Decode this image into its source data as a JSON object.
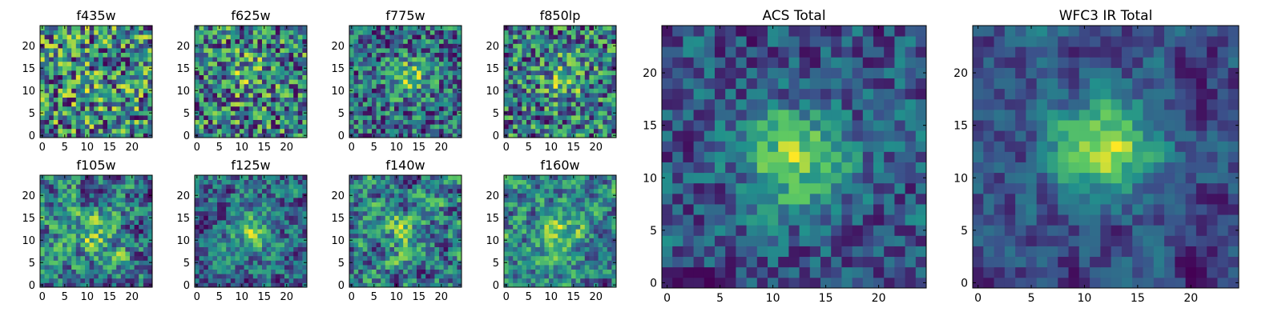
{
  "figure": {
    "colormap": "viridis",
    "colormap_stops": [
      "#440154",
      "#3b528b",
      "#21918c",
      "#5ec962",
      "#fde725"
    ]
  },
  "chart_data": [
    {
      "type": "heatmap",
      "title": "f435w",
      "grid_size": 25,
      "xlim": [
        -0.5,
        24.5
      ],
      "ylim": [
        -0.5,
        24.5
      ],
      "xticks": [
        0,
        5,
        10,
        15,
        20
      ],
      "yticks": [
        0,
        5,
        10,
        15,
        20
      ],
      "source_peak": {
        "x": 12,
        "y": 10
      },
      "source_strength": 0.05,
      "noise_level": 0.32,
      "smoothness": 0.0,
      "seed": 11
    },
    {
      "type": "heatmap",
      "title": "f625w",
      "grid_size": 25,
      "xlim": [
        -0.5,
        24.5
      ],
      "ylim": [
        -0.5,
        24.5
      ],
      "xticks": [
        0,
        5,
        10,
        15,
        20
      ],
      "yticks": [
        0,
        5,
        10,
        15,
        20
      ],
      "source_peak": {
        "x": 11,
        "y": 14
      },
      "source_strength": 0.15,
      "noise_level": 0.32,
      "smoothness": 0.0,
      "seed": 23
    },
    {
      "type": "heatmap",
      "title": "f775w",
      "grid_size": 25,
      "xlim": [
        -0.5,
        24.5
      ],
      "ylim": [
        -0.5,
        24.5
      ],
      "xticks": [
        0,
        5,
        10,
        15,
        20
      ],
      "yticks": [
        0,
        5,
        10,
        15,
        20
      ],
      "source_peak": {
        "x": 13,
        "y": 13
      },
      "source_strength": 0.3,
      "noise_level": 0.3,
      "smoothness": 0.0,
      "seed": 37
    },
    {
      "type": "heatmap",
      "title": "f850lp",
      "grid_size": 25,
      "xlim": [
        -0.5,
        24.5
      ],
      "ylim": [
        -0.5,
        24.5
      ],
      "xticks": [
        0,
        5,
        10,
        15,
        20
      ],
      "yticks": [
        0,
        5,
        10,
        15,
        20
      ],
      "source_peak": {
        "x": 13,
        "y": 13
      },
      "source_strength": 0.22,
      "noise_level": 0.32,
      "smoothness": 0.0,
      "seed": 41
    },
    {
      "type": "heatmap",
      "title": "f105w",
      "grid_size": 25,
      "xlim": [
        -0.5,
        24.5
      ],
      "ylim": [
        -0.5,
        24.5
      ],
      "xticks": [
        0,
        5,
        10,
        15,
        20
      ],
      "yticks": [
        0,
        5,
        10,
        15,
        20
      ],
      "source_peak": {
        "x": 12,
        "y": 11
      },
      "source_strength": 0.15,
      "noise_level": 0.3,
      "smoothness": 0.5,
      "seed": 53
    },
    {
      "type": "heatmap",
      "title": "f125w",
      "grid_size": 25,
      "xlim": [
        -0.5,
        24.5
      ],
      "ylim": [
        -0.5,
        24.5
      ],
      "xticks": [
        0,
        5,
        10,
        15,
        20
      ],
      "yticks": [
        0,
        5,
        10,
        15,
        20
      ],
      "source_peak": {
        "x": 12,
        "y": 12
      },
      "source_strength": 0.22,
      "noise_level": 0.28,
      "smoothness": 0.5,
      "seed": 67
    },
    {
      "type": "heatmap",
      "title": "f140w",
      "grid_size": 25,
      "xlim": [
        -0.5,
        24.5
      ],
      "ylim": [
        -0.5,
        24.5
      ],
      "xticks": [
        0,
        5,
        10,
        15,
        20
      ],
      "yticks": [
        0,
        5,
        10,
        15,
        20
      ],
      "source_peak": {
        "x": 12,
        "y": 12
      },
      "source_strength": 0.15,
      "noise_level": 0.3,
      "smoothness": 0.5,
      "seed": 71
    },
    {
      "type": "heatmap",
      "title": "f160w",
      "grid_size": 25,
      "xlim": [
        -0.5,
        24.5
      ],
      "ylim": [
        -0.5,
        24.5
      ],
      "xticks": [
        0,
        5,
        10,
        15,
        20
      ],
      "yticks": [
        0,
        5,
        10,
        15,
        20
      ],
      "source_peak": {
        "x": 12,
        "y": 11
      },
      "source_strength": 0.25,
      "noise_level": 0.28,
      "smoothness": 0.5,
      "seed": 83
    },
    {
      "type": "heatmap",
      "title": "ACS Total",
      "grid_size": 25,
      "xlim": [
        -0.5,
        24.5
      ],
      "ylim": [
        -0.5,
        24.5
      ],
      "xticks": [
        0,
        5,
        10,
        15,
        20
      ],
      "yticks": [
        0,
        5,
        10,
        15,
        20
      ],
      "source_peak": {
        "x": 12,
        "y": 12
      },
      "source_strength": 0.38,
      "noise_level": 0.2,
      "smoothness": 0.3,
      "seed": 97
    },
    {
      "type": "heatmap",
      "title": "WFC3 IR Total",
      "grid_size": 25,
      "xlim": [
        -0.5,
        24.5
      ],
      "ylim": [
        -0.5,
        24.5
      ],
      "xticks": [
        0,
        5,
        10,
        15,
        20
      ],
      "yticks": [
        0,
        5,
        10,
        15,
        20
      ],
      "source_peak": {
        "x": 12,
        "y": 13
      },
      "source_strength": 0.42,
      "noise_level": 0.2,
      "smoothness": 0.6,
      "seed": 131
    }
  ]
}
